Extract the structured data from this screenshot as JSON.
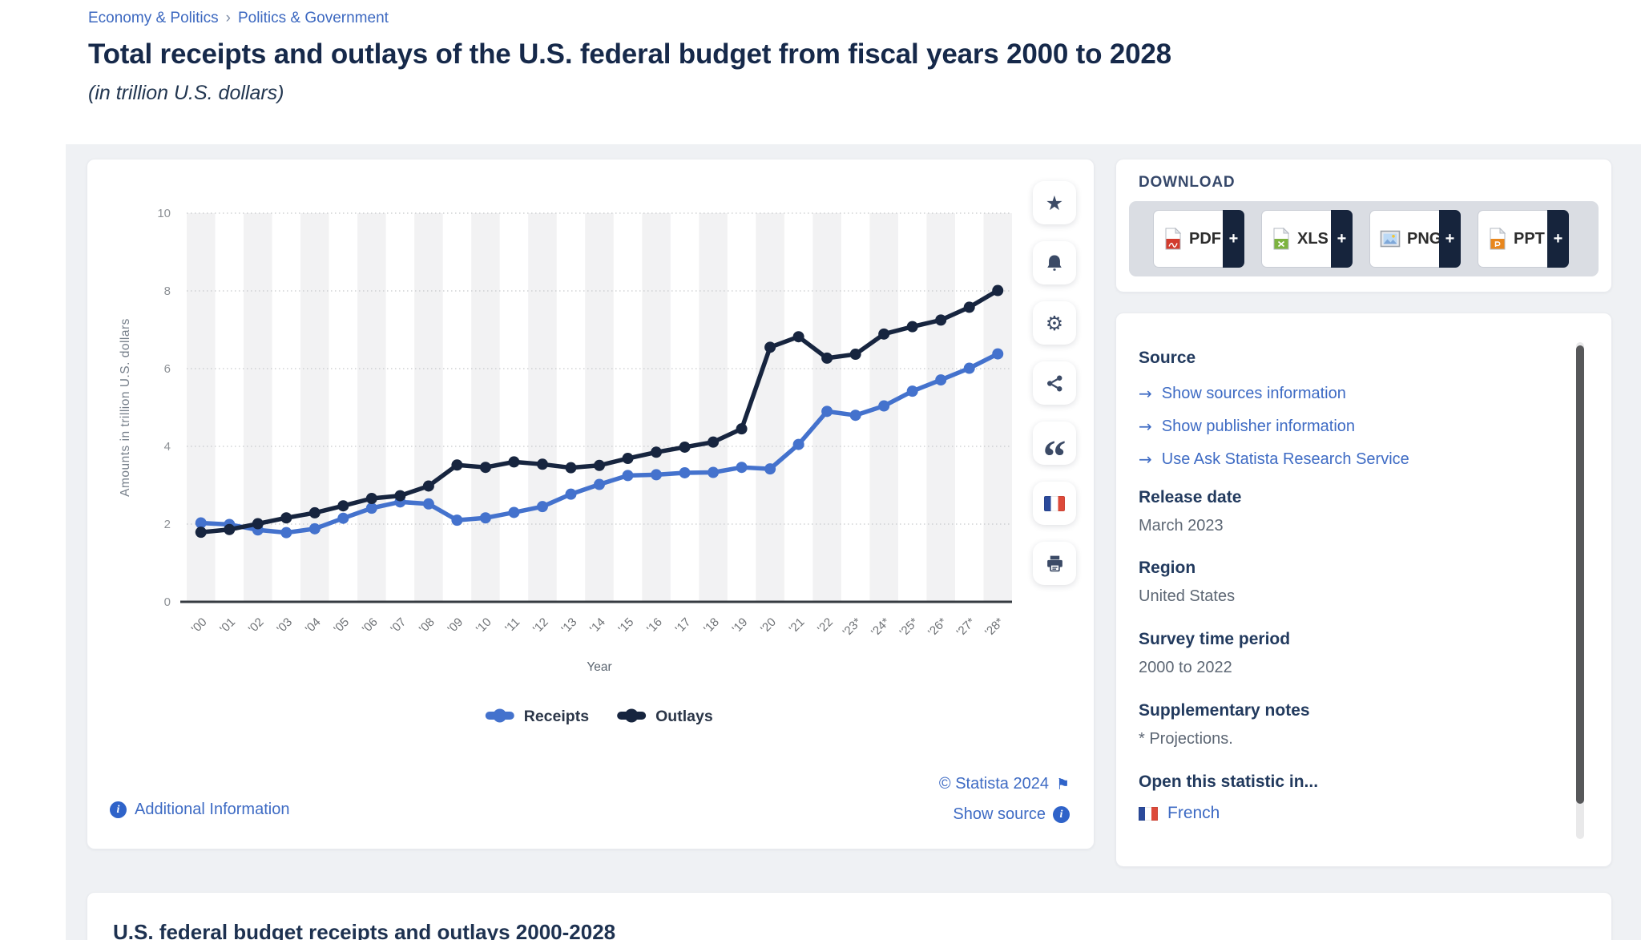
{
  "breadcrumb": {
    "items": [
      "Economy & Politics",
      "Politics & Government"
    ],
    "separator": "›"
  },
  "header": {
    "title": "Total receipts and outlays of the U.S. federal budget from fiscal years 2000 to 2028",
    "subtitle": "(in trillion U.S. dollars)"
  },
  "chart_data": {
    "type": "line",
    "title": "Total receipts and outlays of the U.S. federal budget from fiscal years 2000 to 2028",
    "categories": [
      "'00",
      "'01",
      "'02",
      "'03",
      "'04",
      "'05",
      "'06",
      "'07",
      "'08",
      "'09",
      "'10",
      "'11",
      "'12",
      "'13",
      "'14",
      "'15",
      "'16",
      "'17",
      "'18",
      "'19",
      "'20",
      "'21",
      "'22",
      "'23*",
      "'24*",
      "'25*",
      "'26*",
      "'27*",
      "'28*"
    ],
    "series": [
      {
        "name": "Receipts",
        "color": "#4472cd",
        "values": [
          2.03,
          1.99,
          1.85,
          1.78,
          1.88,
          2.15,
          2.41,
          2.57,
          2.52,
          2.1,
          2.16,
          2.3,
          2.45,
          2.77,
          3.02,
          3.25,
          3.27,
          3.32,
          3.33,
          3.46,
          3.42,
          4.05,
          4.9,
          4.8,
          5.04,
          5.42,
          5.71,
          6.01,
          6.38
        ]
      },
      {
        "name": "Outlays",
        "color": "#17253f",
        "values": [
          1.79,
          1.86,
          2.01,
          2.16,
          2.29,
          2.47,
          2.66,
          2.73,
          2.98,
          3.52,
          3.46,
          3.6,
          3.54,
          3.45,
          3.51,
          3.69,
          3.85,
          3.98,
          4.11,
          4.45,
          6.55,
          6.82,
          6.27,
          6.37,
          6.89,
          7.08,
          7.25,
          7.58,
          8.01
        ]
      }
    ],
    "xlabel": "Year",
    "ylabel": "Amounts in trillion U.S. dollars",
    "ylim": [
      0,
      10
    ],
    "yticks": [
      0,
      2,
      4,
      6,
      8,
      10
    ],
    "grid": "horizontal-dotted",
    "column_bands": true,
    "legend_position": "bottom"
  },
  "chart_card": {
    "additional_info_label": "Additional Information",
    "copyright": "© Statista 2024",
    "show_source_label": "Show source"
  },
  "toolbar": {
    "icons": [
      "star-icon",
      "bell-icon",
      "gear-icon",
      "share-icon",
      "quote-icon",
      "french-flag-icon",
      "printer-icon"
    ]
  },
  "download": {
    "heading": "DOWNLOAD",
    "plus_label": "+",
    "buttons": [
      {
        "label": "PDF"
      },
      {
        "label": "XLS"
      },
      {
        "label": "PNG"
      },
      {
        "label": "PPT"
      }
    ]
  },
  "source_panel": {
    "source_heading": "Source",
    "links": [
      "Show sources information",
      "Show publisher information",
      "Use Ask Statista Research Service"
    ],
    "release_date_label": "Release date",
    "release_date": "March 2023",
    "region_label": "Region",
    "region": "United States",
    "survey_label": "Survey time period",
    "survey": "2000 to 2022",
    "notes_label": "Supplementary notes",
    "notes": "* Projections.",
    "open_label": "Open this statistic in...",
    "language_link": "French"
  },
  "next_section": {
    "heading": "U.S. federal budget receipts and outlays 2000-2028"
  },
  "colors": {
    "receipts": "#4472cd",
    "outlays": "#17253f",
    "link": "#3e6bc4",
    "title": "#16294a",
    "band": "#f2f2f3",
    "grid": "#c7c9cc",
    "axis": "#363b41"
  }
}
